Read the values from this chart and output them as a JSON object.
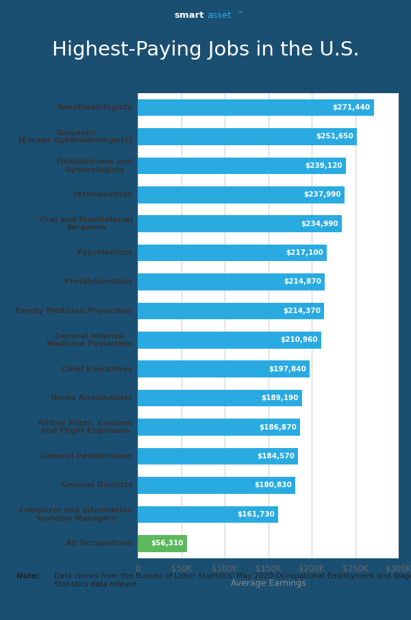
{
  "title": "Highest-Paying Jobs in the U.S.",
  "header_bg_color": "#1b4f72",
  "chart_bg_color": "#ffffff",
  "footer_bg_color": "#eeeeee",
  "categories": [
    "All Occupations",
    "Computer and Information\nSystems Managers",
    "General Dentists",
    "General Pediatricians",
    "Airline Pilots, Copilots\nand Flight Engineers",
    "Nurse Anesthetists",
    "Chief Executives",
    "General Internal\nMedicine Physicians",
    "Family Medicine Physicians",
    "Prosthodontists",
    "Psychiatrists",
    "Oral and Maxillofacial\nSurgeons",
    "Orthodontists",
    "Obstetricians and\nGynecologists",
    "Surgeons\n(Except Ophthalmologists)",
    "Anesthesiologists"
  ],
  "values": [
    56310,
    161730,
    180830,
    184570,
    186870,
    189190,
    197840,
    210960,
    214370,
    214870,
    217100,
    234990,
    237990,
    239120,
    251650,
    271440
  ],
  "bar_colors": [
    "#5cb85c",
    "#29abe2",
    "#29abe2",
    "#29abe2",
    "#29abe2",
    "#29abe2",
    "#29abe2",
    "#29abe2",
    "#29abe2",
    "#29abe2",
    "#29abe2",
    "#29abe2",
    "#29abe2",
    "#29abe2",
    "#29abe2",
    "#29abe2"
  ],
  "value_labels": [
    "$56,310",
    "$161,730",
    "$180,830",
    "$184,570",
    "$186,870",
    "$189,190",
    "$197,840",
    "$210,960",
    "$214,370",
    "$214,870",
    "$217,100",
    "$234,990",
    "$237,990",
    "$239,120",
    "$251,650",
    "$271,440"
  ],
  "xlabel": "Average Earnings",
  "xlim": [
    0,
    300000
  ],
  "xticks": [
    0,
    50000,
    100000,
    150000,
    200000,
    250000,
    300000
  ],
  "xtick_labels": [
    "0",
    "$50K",
    "$100K",
    "$150K",
    "$200K",
    "$250K",
    "$300K"
  ],
  "note_text_plain": "Data comes from the Bureau of Labor Statistics' May 2020 Occupational Employment and Wage\nStatistics data release.",
  "note_bold": "Note:",
  "figsize": [
    6.0,
    9.05
  ],
  "dpi": 100
}
